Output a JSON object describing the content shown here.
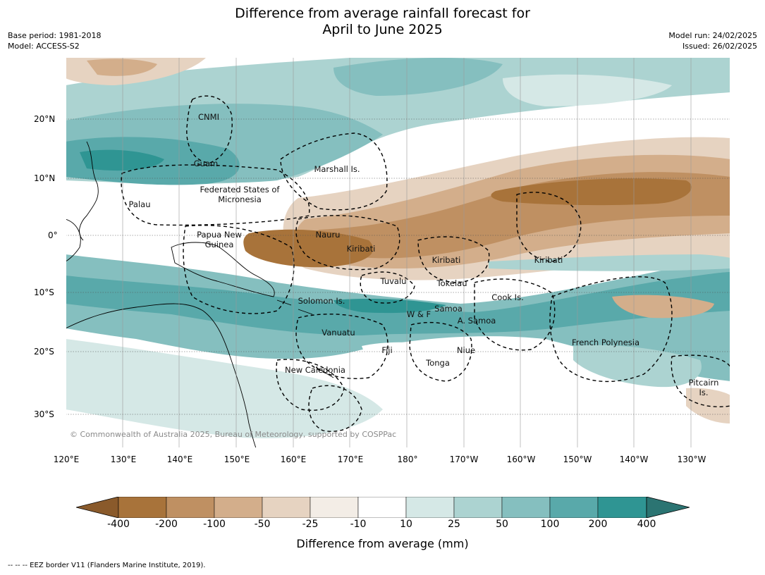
{
  "title_line1": "Difference from average rainfall forecast for",
  "title_line2": "April to June 2025",
  "meta_left": {
    "base_period": "Base period: 1981-2018",
    "model": "Model: ACCESS-S2"
  },
  "meta_right": {
    "model_run": "Model run: 24/02/2025",
    "issued": "Issued: 26/02/2025"
  },
  "map": {
    "lon_labels": [
      "120°E",
      "130°E",
      "140°E",
      "150°E",
      "160°E",
      "170°E",
      "180°",
      "170°W",
      "160°W",
      "150°W",
      "140°W",
      "130°W"
    ],
    "lat_labels": [
      "20°N",
      "10°N",
      "0°",
      "10°S",
      "20°S",
      "30°S"
    ],
    "regions": [
      "CNMI",
      "Guam",
      "Marshall Is.",
      "Federated States of Micronesia",
      "Palau",
      "Papua New Guinea",
      "Nauru",
      "Kiribati",
      "Kiribati",
      "Kiribati",
      "Tuvalu",
      "Tokelau",
      "Cook Is.",
      "Solomon Is.",
      "Samoa",
      "W & F",
      "A. Samoa",
      "Vanuatu",
      "Fiji",
      "Niue",
      "Tonga",
      "French Polynesia",
      "New Caledonia",
      "Pitcairn Is."
    ],
    "copyright": "© Commonwealth of Australia 2025, Bureau of Meteorology, supported by COSPPac"
  },
  "colorbar": {
    "ticks": [
      "-400",
      "-200",
      "-100",
      "-50",
      "-25",
      "-10",
      "10",
      "25",
      "50",
      "100",
      "200",
      "400"
    ],
    "colors": [
      "#8a5a2b",
      "#a8733a",
      "#bf9062",
      "#d3ae8b",
      "#e6d3c1",
      "#f3ede6",
      "#ffffff",
      "#d5e8e6",
      "#acd3d1",
      "#85bfbf",
      "#59a9aa",
      "#2f9593",
      "#2b7472"
    ],
    "label": "Difference from average (mm)"
  },
  "footnote": "--  --  -- EEZ border V11 (Flanders Marine Institute, 2019)."
}
